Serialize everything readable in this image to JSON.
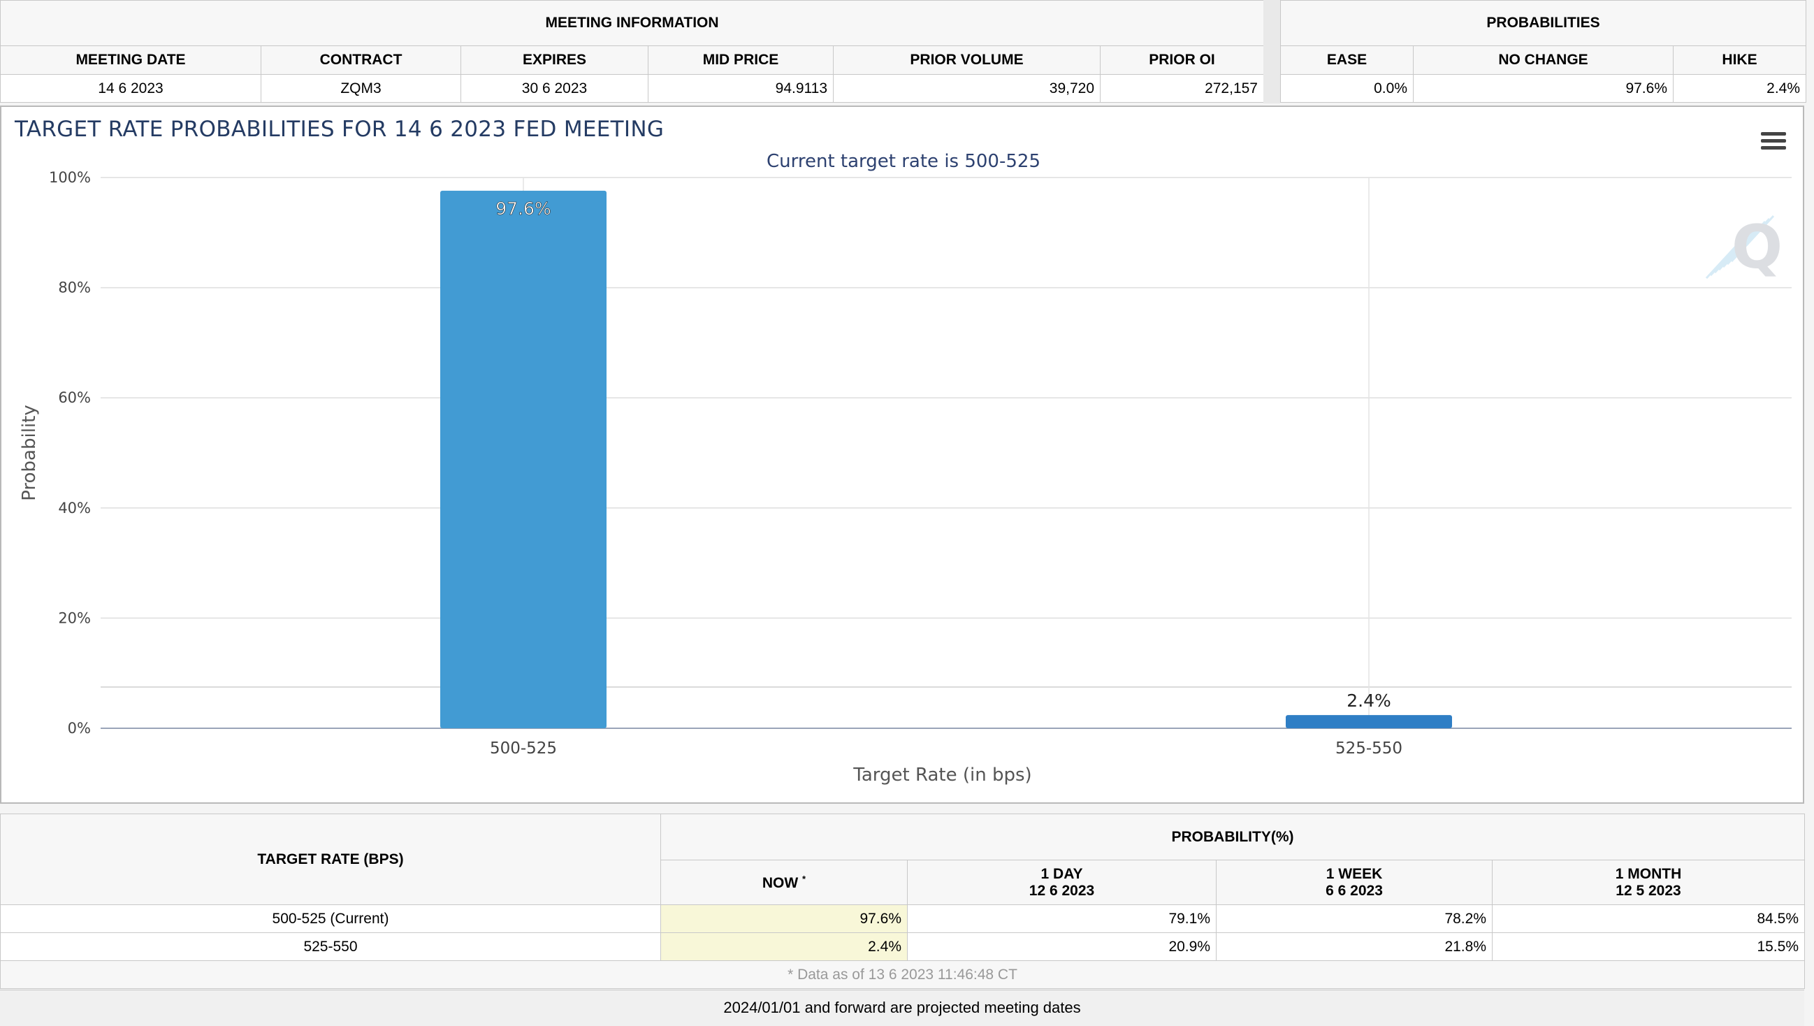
{
  "meeting_info": {
    "group_label": "MEETING INFORMATION",
    "headers": [
      "MEETING DATE",
      "CONTRACT",
      "EXPIRES",
      "MID PRICE",
      "PRIOR VOLUME",
      "PRIOR OI"
    ],
    "values": [
      "14 6 2023",
      "ZQM3",
      "30 6 2023",
      "94.9113",
      "39,720",
      "272,157"
    ]
  },
  "probabilities": {
    "group_label": "PROBABILITIES",
    "headers": [
      "EASE",
      "NO CHANGE",
      "HIKE"
    ],
    "values": [
      "0.0%",
      "97.6%",
      "2.4%"
    ]
  },
  "chart": {
    "menu_icon": "hamburger-menu-icon",
    "watermark_icon": "q-logo-icon"
  },
  "chart_data": {
    "type": "bar",
    "title": "TARGET RATE PROBABILITIES FOR 14 6 2023 FED MEETING",
    "subtitle": "Current target rate is 500-525",
    "xlabel": "Target Rate (in bps)",
    "ylabel": "Probability",
    "categories": [
      "500-525",
      "525-550"
    ],
    "values": [
      97.6,
      2.4
    ],
    "data_labels": [
      "97.6%",
      "2.4%"
    ],
    "ylim": [
      0,
      100
    ],
    "yticks": [
      "0%",
      "20%",
      "40%",
      "60%",
      "80%",
      "100%"
    ],
    "grid": true,
    "colors": [
      "#429bd3",
      "#2f7ec5"
    ]
  },
  "rate_table": {
    "target_header": "TARGET RATE (BPS)",
    "prob_header": "PROBABILITY(%)",
    "cols": [
      {
        "line1": "NOW",
        "sup": "*",
        "line2": ""
      },
      {
        "line1": "1 DAY",
        "line2": "12 6 2023"
      },
      {
        "line1": "1 WEEK",
        "line2": "6 6 2023"
      },
      {
        "line1": "1 MONTH",
        "line2": "12 5 2023"
      }
    ],
    "rows": [
      {
        "rate": "500-525 (Current)",
        "values": [
          "97.6%",
          "79.1%",
          "78.2%",
          "84.5%"
        ]
      },
      {
        "rate": "525-550",
        "values": [
          "2.4%",
          "20.9%",
          "21.8%",
          "15.5%"
        ]
      }
    ],
    "note": "* Data as of 13 6 2023 11:46:48 CT"
  },
  "footer": "2024/01/01 and forward are projected meeting dates"
}
